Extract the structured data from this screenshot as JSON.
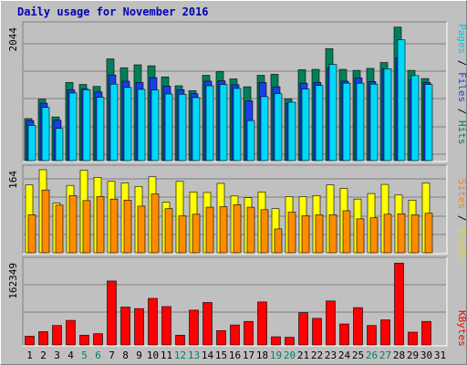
{
  "title": "Daily usage for November 2016",
  "panels": {
    "top": {
      "scale_label": "2044",
      "legend": [
        {
          "text": "Pages",
          "color": "#00c8e0"
        },
        {
          "text": " / ",
          "color": "#000000"
        },
        {
          "text": "Files",
          "color": "#2040e0"
        },
        {
          "text": " / ",
          "color": "#000000"
        },
        {
          "text": "Hits",
          "color": "#008060"
        }
      ]
    },
    "middle": {
      "scale_label": "164",
      "legend": [
        {
          "text": "Sites",
          "color": "#ff8000"
        },
        {
          "text": " / ",
          "color": "#000000"
        },
        {
          "text": "Visits",
          "color": "#e0e000"
        }
      ]
    },
    "bottom": {
      "scale_label": "162349",
      "legend": [
        {
          "text": "KBytes",
          "color": "#ff0000"
        }
      ]
    }
  },
  "colors": {
    "hits": "#00805a",
    "files": "#1a3ee8",
    "pages": "#00d8f8",
    "visits": "#ffff00",
    "sites": "#ff8c00",
    "kbytes": "#ff0000",
    "weekday_label": "#000000",
    "weekend_label": "#008060"
  },
  "chart_data": [
    {
      "type": "bar",
      "title": "Daily usage for November 2016",
      "ylabel": "Pages / Files / Hits",
      "ylim": [
        0,
        2044
      ],
      "categories": [
        "1",
        "2",
        "3",
        "4",
        "5",
        "6",
        "7",
        "8",
        "9",
        "10",
        "11",
        "12",
        "13",
        "14",
        "15",
        "16",
        "17",
        "18",
        "19",
        "20",
        "21",
        "22",
        "23",
        "24",
        "25",
        "26",
        "27",
        "28",
        "29",
        "30",
        "31"
      ],
      "weekend_days": [
        5,
        6,
        12,
        13,
        19,
        20,
        26,
        27
      ],
      "series": [
        {
          "name": "Hits",
          "values": [
            640,
            935,
            665,
            1190,
            1160,
            1130,
            1550,
            1415,
            1460,
            1445,
            1275,
            1140,
            1065,
            1300,
            1355,
            1245,
            1125,
            1300,
            1315,
            940,
            1385,
            1390,
            1705,
            1390,
            1375,
            1405,
            1495,
            2035,
            1375,
            1250,
            0
          ]
        },
        {
          "name": "Files",
          "values": [
            610,
            875,
            615,
            1075,
            1090,
            1045,
            1305,
            1210,
            1190,
            1265,
            1135,
            1080,
            1020,
            1210,
            1215,
            1155,
            910,
            1190,
            1125,
            870,
            1180,
            1190,
            1410,
            1210,
            1260,
            1205,
            1395,
            1565,
            1230,
            1190,
            0
          ]
        },
        {
          "name": "Pages",
          "values": [
            535,
            810,
            490,
            1030,
            1080,
            965,
            1165,
            1115,
            1085,
            1075,
            1015,
            1010,
            960,
            1140,
            1160,
            1100,
            610,
            975,
            1020,
            890,
            1090,
            1145,
            1465,
            1180,
            1180,
            1165,
            1400,
            1840,
            1295,
            1160,
            0
          ]
        }
      ]
    },
    {
      "type": "bar",
      "ylabel": "Sites / Visits",
      "ylim": [
        0,
        164
      ],
      "categories": [
        "1",
        "2",
        "3",
        "4",
        "5",
        "6",
        "7",
        "8",
        "9",
        "10",
        "11",
        "12",
        "13",
        "14",
        "15",
        "16",
        "17",
        "18",
        "19",
        "20",
        "21",
        "22",
        "23",
        "24",
        "25",
        "26",
        "27",
        "28",
        "29",
        "30",
        "31"
      ],
      "series": [
        {
          "name": "Visits",
          "values": [
            134,
            164,
            98,
            133,
            163,
            149,
            141,
            138,
            131,
            150,
            100,
            141,
            120,
            119,
            137,
            112,
            109,
            120,
            87,
            111,
            111,
            113,
            134,
            127,
            106,
            117,
            135,
            114,
            104,
            138,
            0
          ]
        },
        {
          "name": "Sites",
          "values": [
            75,
            124,
            94,
            113,
            103,
            111,
            106,
            104,
            92,
            116,
            87,
            73,
            76,
            90,
            91,
            95,
            90,
            85,
            47,
            80,
            73,
            75,
            75,
            83,
            67,
            69,
            76,
            77,
            75,
            78,
            0
          ]
        }
      ]
    },
    {
      "type": "bar",
      "ylabel": "KBytes",
      "ylim": [
        0,
        162349
      ],
      "categories": [
        "1",
        "2",
        "3",
        "4",
        "5",
        "6",
        "7",
        "8",
        "9",
        "10",
        "11",
        "12",
        "13",
        "14",
        "15",
        "16",
        "17",
        "18",
        "19",
        "20",
        "21",
        "22",
        "23",
        "24",
        "25",
        "26",
        "27",
        "28",
        "29",
        "30",
        "31"
      ],
      "series": [
        {
          "name": "KBytes",
          "values": [
            17000,
            26000,
            38000,
            48000,
            19000,
            22000,
            125000,
            74000,
            71000,
            91000,
            75000,
            19000,
            68000,
            83000,
            28000,
            39000,
            46000,
            84000,
            16000,
            15000,
            63000,
            52000,
            86000,
            41000,
            73000,
            38000,
            49000,
            160000,
            25000,
            46000,
            0
          ]
        }
      ]
    }
  ]
}
